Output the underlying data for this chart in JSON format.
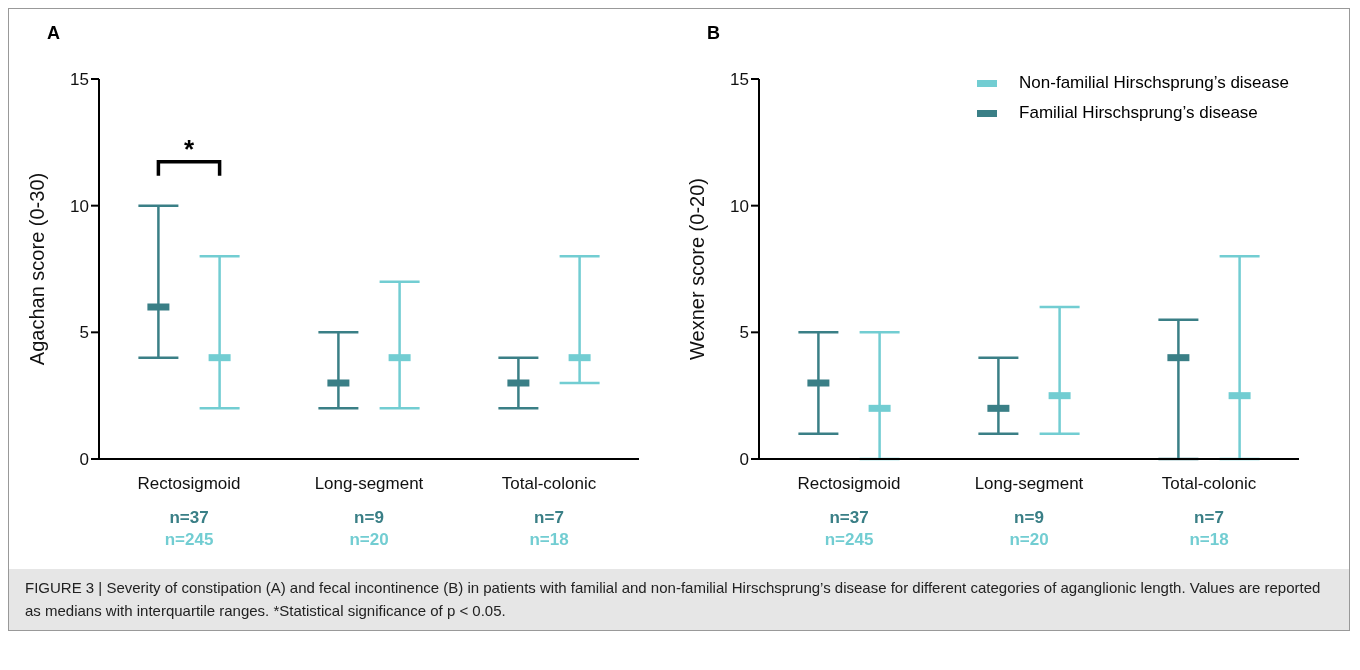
{
  "chart_data": [
    {
      "type": "scatter",
      "title": "A",
      "ylabel": "Agachan score (0-30)",
      "categories": [
        "Rectosigmoid",
        "Long-segment",
        "Total-colonic"
      ],
      "ylim": [
        0,
        15
      ],
      "yticks": [
        0,
        5,
        10,
        15
      ],
      "legend": false,
      "series": [
        {
          "color": "#3a7f86",
          "values": [
            6,
            3,
            3
          ],
          "errors": [
            [
              4,
              10
            ],
            [
              2,
              5
            ],
            [
              2,
              4
            ]
          ]
        },
        {
          "color": "#72cdd2",
          "values": [
            4,
            4,
            4
          ],
          "errors": [
            [
              2,
              8
            ],
            [
              2,
              7
            ],
            [
              3,
              8
            ]
          ]
        }
      ],
      "annotations": [
        "n=37",
        "n=245",
        "n=9",
        "n=20",
        "n=7",
        "n=18",
        "*",
        "FIGURE 3 | Severity of constipation (A) and fecal incontinence (B) in patients with familial and non-familial Hirschsprung’s disease for different categories of aganglionic length. Values are reported as medians with interquartile ranges. *Statistical significance of p < 0.05."
      ]
    },
    {
      "type": "scatter",
      "title": "B",
      "ylabel": "Wexner score (0-20)",
      "categories": [
        "Rectosigmoid",
        "Long-segment",
        "Total-colonic"
      ],
      "ylim": [
        0,
        15
      ],
      "yticks": [
        0,
        5,
        10,
        15
      ],
      "legend": "top right",
      "series": [
        {
          "name": "Familial Hirschsprung’s disease",
          "color": "#3a7f86",
          "values": [
            3,
            2,
            4
          ],
          "errors": [
            [
              1,
              5
            ],
            [
              1,
              4
            ],
            [
              0,
              5.5
            ]
          ]
        },
        {
          "name": "Non-familial Hirschsprung’s disease",
          "color": "#72cdd2",
          "values": [
            2,
            2.5,
            2.5
          ],
          "errors": [
            [
              0,
              5
            ],
            [
              1,
              6
            ],
            [
              0,
              8
            ]
          ]
        }
      ],
      "annotations": [
        "n=37",
        "n=245",
        "n=9",
        "n=20",
        "n=7",
        "n=18"
      ]
    }
  ]
}
